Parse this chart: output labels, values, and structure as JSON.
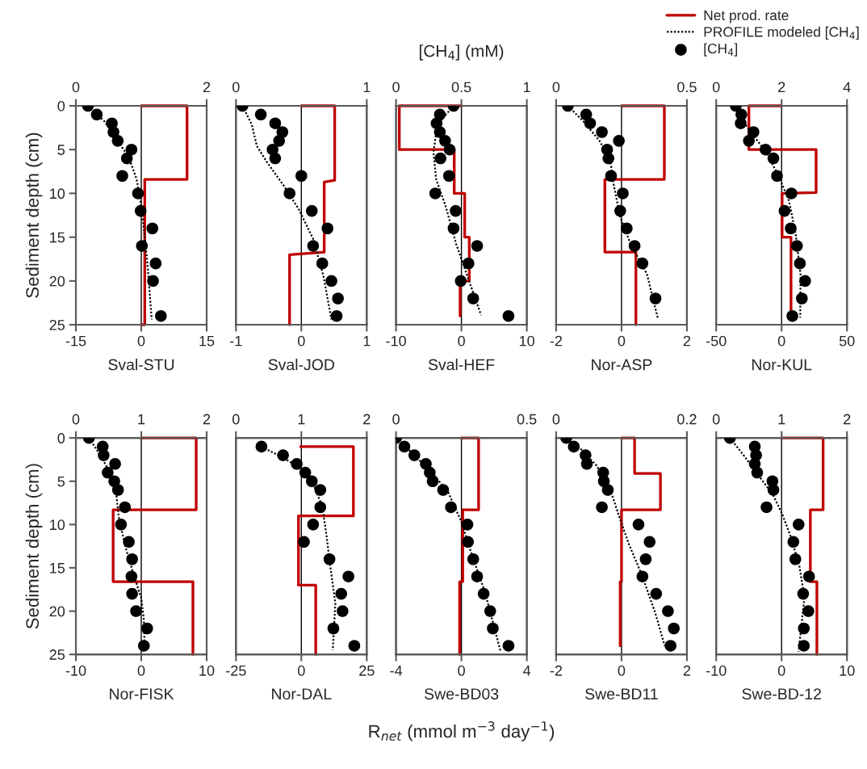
{
  "chart_data": [
    {
      "type": "line",
      "title": "Sval-STU",
      "ylabel": "Sediment depth (cm)",
      "xlim": [
        -15,
        15
      ],
      "xticks": [
        -15,
        0,
        15
      ],
      "x2lim": [
        0,
        2
      ],
      "x2ticks": [
        0,
        2
      ],
      "ylim": [
        25,
        0
      ],
      "yticks": [
        0,
        5,
        10,
        15,
        20,
        25
      ],
      "ref_lines": [
        {
          "axis": "x",
          "value": 0
        }
      ],
      "series": [
        {
          "type": "line",
          "color": "#c00000",
          "line_style": "solid",
          "x": [
            0,
            10.5,
            10.5,
            0.8,
            0.8,
            0
          ],
          "values": [
            0,
            0,
            8.4,
            8.4,
            25,
            25
          ]
        },
        {
          "type": "scatter",
          "axis": "x2",
          "color": "#000000",
          "marker": "circle",
          "x": [
            0.185,
            0.32,
            0.55,
            0.575,
            0.64,
            0.85,
            0.78,
            0.71,
            0.95,
            0.99,
            1.17,
            1.01,
            1.22,
            1.18,
            1.3
          ],
          "values": [
            0,
            1,
            2,
            3,
            4,
            5,
            6,
            8,
            10,
            12,
            14,
            16,
            18,
            20,
            24
          ]
        },
        {
          "type": "line",
          "axis": "x2",
          "color": "#000000",
          "line_style": "dotted",
          "x": [
            0.185,
            0.44,
            0.64,
            0.81,
            0.93,
            0.99,
            1.03,
            1.09,
            1.16
          ],
          "values": [
            0,
            1.8,
            4,
            5.9,
            8.4,
            10.9,
            13.3,
            17.7,
            24.4
          ]
        }
      ]
    },
    {
      "type": "line",
      "title": "Sval-JOD",
      "tick_labels": "x",
      "xlim": [
        -1,
        1
      ],
      "xticks": [
        -1,
        0,
        1
      ],
      "x2lim": [
        0,
        1
      ],
      "x2ticks": [
        0,
        1
      ],
      "ylim": [
        25,
        0
      ],
      "yticks": [
        0,
        5,
        10,
        15,
        20,
        25
      ],
      "ref_lines": [
        {
          "axis": "x",
          "value": 0
        }
      ],
      "series": [
        {
          "type": "line",
          "color": "#c00000",
          "line_style": "solid",
          "x": [
            0,
            0.51,
            0.51,
            0.35,
            0.35,
            -0.18,
            -0.18
          ],
          "values": [
            0,
            0,
            8.5,
            8.7,
            16.7,
            17,
            25
          ]
        },
        {
          "type": "scatter",
          "axis": "x2",
          "color": "#000000",
          "marker": "circle",
          "x": [
            0.05,
            0.19,
            0.3,
            0.355,
            0.33,
            0.28,
            0.3,
            0.5,
            0.41,
            0.58,
            0.7,
            0.59,
            0.66,
            0.73,
            0.78,
            0.77
          ],
          "values": [
            0,
            1,
            2,
            3,
            4,
            5,
            6,
            8,
            10,
            12,
            14,
            16,
            18,
            20,
            22,
            24
          ]
        },
        {
          "type": "line",
          "axis": "x2",
          "color": "#000000",
          "line_style": "dotted",
          "x": [
            0.05,
            0.12,
            0.16,
            0.24,
            0.36,
            0.48,
            0.59,
            0.67,
            0.73
          ],
          "values": [
            0,
            2.1,
            4.6,
            6.5,
            9,
            11.8,
            15.2,
            19.5,
            24.4
          ]
        }
      ]
    },
    {
      "type": "line",
      "title": "Sval-HEF",
      "x2label": "[CH$_{4}$] (mM)",
      "tick_labels": "x",
      "xlim": [
        -10,
        10
      ],
      "xticks": [
        -10,
        0,
        10
      ],
      "x2lim": [
        0,
        1
      ],
      "x2ticks": [
        0,
        0.5,
        1
      ],
      "ylim": [
        25,
        0
      ],
      "yticks": [
        0,
        5,
        10,
        15,
        20,
        25
      ],
      "ref_lines": [
        {
          "axis": "x",
          "value": 0
        }
      ],
      "series": [
        {
          "type": "line",
          "color": "#c00000",
          "line_style": "solid",
          "x": [
            0,
            -9.5,
            -9.5,
            -1.1,
            -1.1,
            0.5,
            0.5,
            1.2,
            1.2,
            -0.2,
            -0.2
          ],
          "values": [
            0,
            0,
            5,
            5,
            10,
            10,
            15,
            15,
            20,
            20,
            24
          ]
        },
        {
          "type": "scatter",
          "axis": "x2",
          "color": "#000000",
          "marker": "circle",
          "x": [
            0.44,
            0.335,
            0.31,
            0.335,
            0.375,
            0.41,
            0.34,
            0.405,
            0.3,
            0.456,
            0.44,
            0.62,
            0.554,
            0.495,
            0.59,
            0.86
          ],
          "values": [
            0,
            1,
            2,
            3,
            4,
            5,
            6,
            8,
            10,
            12,
            14,
            16,
            18,
            20,
            22,
            24
          ]
        },
        {
          "type": "line",
          "axis": "x2",
          "color": "#000000",
          "line_style": "dotted",
          "x": [
            0.44,
            0.317,
            0.286,
            0.307,
            0.38,
            0.46,
            0.54,
            0.65
          ],
          "values": [
            0,
            2.1,
            5.3,
            8.4,
            11.5,
            15.8,
            19.2,
            23.9
          ]
        }
      ]
    },
    {
      "type": "line",
      "title": "Nor-ASP",
      "tick_labels": "x",
      "xlim": [
        -2,
        2
      ],
      "xticks": [
        -2,
        0,
        2
      ],
      "x2lim": [
        0,
        0.5
      ],
      "x2ticks": [
        0,
        0.5
      ],
      "ylim": [
        25,
        0
      ],
      "yticks": [
        0,
        5,
        10,
        15,
        20,
        25
      ],
      "ref_lines": [
        {
          "axis": "x",
          "value": 0
        }
      ],
      "series": [
        {
          "type": "line",
          "color": "#c00000",
          "line_style": "solid",
          "x": [
            0,
            1.31,
            1.31,
            -0.51,
            -0.51,
            0.44,
            0.44
          ],
          "values": [
            0,
            0,
            8.4,
            8.4,
            16.7,
            16.7,
            25
          ]
        },
        {
          "type": "scatter",
          "axis": "x2",
          "color": "#000000",
          "marker": "circle",
          "x": [
            0.045,
            0.115,
            0.13,
            0.175,
            0.24,
            0.195,
            0.2,
            0.21,
            0.255,
            0.245,
            0.27,
            0.3,
            0.33,
            0.38
          ],
          "values": [
            0,
            1,
            2,
            3,
            4,
            5,
            6,
            8,
            10,
            12,
            14,
            16,
            18,
            22
          ]
        },
        {
          "type": "line",
          "axis": "x2",
          "color": "#000000",
          "line_style": "dotted",
          "x": [
            0.045,
            0.105,
            0.166,
            0.207,
            0.22,
            0.245,
            0.285,
            0.347,
            0.39
          ],
          "values": [
            0,
            1.8,
            4,
            6.2,
            9,
            12.7,
            15.8,
            19.2,
            24.4
          ]
        }
      ]
    },
    {
      "type": "line",
      "title": "Nor-KUL",
      "legend": "top",
      "tick_labels": "x",
      "xlim": [
        -50,
        50
      ],
      "xticks": [
        -50,
        0,
        50
      ],
      "x2lim": [
        0,
        4
      ],
      "x2ticks": [
        0,
        2,
        4
      ],
      "ylim": [
        25,
        0
      ],
      "yticks": [
        0,
        5,
        10,
        15,
        20,
        25
      ],
      "ref_lines": [
        {
          "axis": "x",
          "value": 0
        }
      ],
      "series": [
        {
          "type": "line",
          "name": "Net prod. rate",
          "color": "#c00000",
          "line_style": "solid",
          "x": [
            0,
            -25,
            -25,
            26.4,
            26.4,
            0.4,
            0.4,
            7.2,
            7.2
          ],
          "values": [
            0,
            0,
            5,
            5,
            9.9,
            10,
            15,
            15,
            24
          ]
        },
        {
          "type": "line",
          "name": "PROFILE modeled [CH$_{4}$]",
          "axis": "x2",
          "color": "#000000",
          "line_style": "dotted",
          "x": [
            0.6,
            0.83,
            1.14,
            1.53,
            1.92,
            2.23,
            2.43,
            2.58,
            2.57
          ],
          "values": [
            0,
            1.8,
            3.4,
            5.3,
            8.1,
            10.9,
            14.6,
            19.3,
            24.2
          ]
        },
        {
          "type": "scatter",
          "name": "[CH$_{4}$]",
          "axis": "x2",
          "color": "#000000",
          "marker": "circle",
          "x": [
            0.6,
            0.77,
            0.75,
            1.14,
            1.0,
            1.51,
            1.75,
            1.86,
            2.3,
            2.09,
            2.28,
            2.47,
            2.56,
            2.72,
            2.62,
            2.33
          ],
          "values": [
            0,
            1,
            2,
            3,
            4,
            5,
            6,
            8,
            10,
            12,
            14,
            16,
            18,
            20,
            22,
            24
          ]
        }
      ]
    },
    {
      "type": "line",
      "title": "Nor-FISK",
      "ylabel": "Sediment depth (cm)",
      "xlim": [
        -10,
        10
      ],
      "xticks": [
        -10,
        0,
        10
      ],
      "x2lim": [
        0,
        2
      ],
      "x2ticks": [
        0,
        1,
        2
      ],
      "ylim": [
        25,
        0
      ],
      "yticks": [
        0,
        5,
        10,
        15,
        20,
        25
      ],
      "ref_lines": [
        {
          "axis": "x",
          "value": 0
        }
      ],
      "series": [
        {
          "type": "line",
          "color": "#c00000",
          "line_style": "solid",
          "x": [
            0,
            8.4,
            8.4,
            -4.3,
            -4.3,
            7.9,
            7.9
          ],
          "values": [
            0,
            0,
            8.3,
            8.3,
            16.6,
            16.6,
            25
          ]
        },
        {
          "type": "scatter",
          "axis": "x2",
          "color": "#000000",
          "marker": "circle",
          "x": [
            0.2,
            0.41,
            0.425,
            0.6,
            0.486,
            0.587,
            0.644,
            0.75,
            0.69,
            0.81,
            0.86,
            0.85,
            0.86,
            0.92,
            1.09,
            1.04
          ],
          "values": [
            0,
            1,
            2,
            3,
            4,
            5,
            6,
            8,
            10,
            12,
            14,
            16,
            18,
            20,
            22,
            24
          ]
        },
        {
          "type": "line",
          "axis": "x2",
          "color": "#000000",
          "line_style": "dotted",
          "x": [
            0.2,
            0.35,
            0.51,
            0.615,
            0.655,
            0.755,
            0.88,
            1.0,
            1.04,
            1.05
          ],
          "values": [
            0,
            1.7,
            3.8,
            6.3,
            9.1,
            12.5,
            15.7,
            18.5,
            21,
            24
          ]
        }
      ]
    },
    {
      "type": "line",
      "title": "Nor-DAL",
      "tick_labels": "x",
      "xlim": [
        -25,
        25
      ],
      "xticks": [
        -25,
        0,
        25
      ],
      "x2lim": [
        0,
        2
      ],
      "x2ticks": [
        0,
        1,
        2
      ],
      "ylim": [
        25,
        0
      ],
      "yticks": [
        0,
        5,
        10,
        15,
        20,
        25
      ],
      "ref_lines": [
        {
          "axis": "x",
          "value": 0
        }
      ],
      "series": [
        {
          "type": "line",
          "color": "#c00000",
          "line_style": "solid",
          "x": [
            -0.3,
            19.9,
            19.9,
            -1.1,
            -1.1,
            5.5,
            5.5
          ],
          "values": [
            1,
            1,
            9,
            9,
            17,
            17,
            25
          ]
        },
        {
          "type": "scatter",
          "axis": "x2",
          "color": "#000000",
          "marker": "circle",
          "x": [
            0.39,
            0.72,
            0.93,
            1.06,
            1.16,
            1.29,
            1.29,
            1.18,
            1.04,
            1.43,
            1.72,
            1.61,
            1.63,
            1.49,
            1.81
          ],
          "values": [
            1,
            2,
            3,
            4,
            5,
            6,
            8,
            10,
            12,
            14,
            16,
            18,
            20,
            22,
            24
          ]
        },
        {
          "type": "line",
          "axis": "x2",
          "color": "#000000",
          "line_style": "dotted",
          "x": [
            0.39,
            0.65,
            0.93,
            1.17,
            1.32,
            1.38,
            1.44,
            1.52,
            1.48
          ],
          "values": [
            1,
            2,
            3.2,
            5.1,
            7.9,
            11,
            14.7,
            19.1,
            24.5
          ]
        }
      ]
    },
    {
      "type": "line",
      "title": "Swe-BD03",
      "xlabel": "R$_{net}$ (mmol m$^{−3}$ day$^{−1}$)",
      "tick_labels": "x",
      "xlim": [
        -4,
        4
      ],
      "xticks": [
        -4,
        0,
        4
      ],
      "x2lim": [
        0,
        0.5
      ],
      "x2ticks": [
        0,
        0.5
      ],
      "ylim": [
        25,
        0
      ],
      "yticks": [
        0,
        5,
        10,
        15,
        20,
        25
      ],
      "ref_lines": [
        {
          "axis": "x",
          "value": 0
        }
      ],
      "series": [
        {
          "type": "line",
          "color": "#c00000",
          "line_style": "solid",
          "x": [
            0,
            1.05,
            1.05,
            0.08,
            0.08,
            -0.11,
            -0.11
          ],
          "values": [
            0,
            0,
            8.3,
            8.3,
            16.6,
            16.6,
            25
          ]
        },
        {
          "type": "scatter",
          "axis": "x2",
          "color": "#000000",
          "marker": "circle",
          "x": [
            0,
            0.032,
            0.07,
            0.114,
            0.129,
            0.14,
            0.18,
            0.21,
            0.273,
            0.275,
            0.295,
            0.31,
            0.335,
            0.36,
            0.37,
            0.43
          ],
          "values": [
            0,
            1,
            2,
            3,
            4,
            5,
            6,
            8,
            10,
            12,
            14,
            16,
            18,
            20,
            22,
            24
          ]
        },
        {
          "type": "line",
          "axis": "x2",
          "color": "#000000",
          "line_style": "dotted",
          "x": [
            0,
            0.06,
            0.14,
            0.2,
            0.25,
            0.29,
            0.34,
            0.4
          ],
          "values": [
            0,
            1.7,
            4.1,
            6.3,
            9.7,
            13.5,
            17.8,
            24.7
          ]
        }
      ]
    },
    {
      "type": "line",
      "title": "Swe-BD11",
      "tick_labels": "x",
      "xlim": [
        -2,
        2
      ],
      "xticks": [
        -2,
        0,
        2
      ],
      "x2lim": [
        0,
        0.2
      ],
      "x2ticks": [
        0,
        0.2
      ],
      "ylim": [
        25,
        0
      ],
      "yticks": [
        0,
        5,
        10,
        15,
        20,
        25
      ],
      "ref_lines": [
        {
          "axis": "x",
          "value": 0
        }
      ],
      "series": [
        {
          "type": "line",
          "color": "#c00000",
          "line_style": "solid",
          "x": [
            0,
            0.4,
            0.4,
            1.19,
            1.19,
            0,
            0,
            -0.04,
            -0.04
          ],
          "values": [
            0,
            0,
            4.1,
            4.1,
            8.3,
            8.3,
            16.6,
            16.6,
            24
          ]
        },
        {
          "type": "scatter",
          "axis": "x2",
          "color": "#000000",
          "marker": "circle",
          "x": [
            0.0155,
            0.027,
            0.045,
            0.047,
            0.072,
            0.073,
            0.079,
            0.07,
            0.126,
            0.143,
            0.137,
            0.132,
            0.153,
            0.171,
            0.18,
            0.175
          ],
          "values": [
            0,
            1,
            2,
            3,
            4,
            5,
            6,
            8,
            10,
            12,
            14,
            16,
            18,
            20,
            22,
            24
          ]
        },
        {
          "type": "line",
          "axis": "x2",
          "color": "#000000",
          "line_style": "dotted",
          "x": [
            0.0155,
            0.038,
            0.062,
            0.083,
            0.097,
            0.111,
            0.132,
            0.152,
            0.166
          ],
          "values": [
            0,
            1.3,
            3.2,
            6,
            9.2,
            12.2,
            16,
            20.3,
            24
          ]
        }
      ]
    },
    {
      "type": "line",
      "title": "Swe-BD-12",
      "tick_labels": "x",
      "xlim": [
        -10,
        10
      ],
      "xticks": [
        -10,
        0,
        10
      ],
      "x2lim": [
        0,
        2
      ],
      "x2ticks": [
        0,
        1,
        2
      ],
      "ylim": [
        25,
        0
      ],
      "yticks": [
        0,
        5,
        10,
        15,
        20,
        25
      ],
      "ref_lines": [
        {
          "axis": "x",
          "value": 0
        }
      ],
      "series": [
        {
          "type": "line",
          "color": "#c00000",
          "line_style": "solid",
          "x": [
            0,
            6.35,
            6.35,
            4.4,
            4.4,
            5.4,
            5.4
          ],
          "values": [
            0,
            0,
            8.3,
            8.3,
            16.6,
            16.6,
            25
          ]
        },
        {
          "type": "scatter",
          "axis": "x2",
          "color": "#000000",
          "marker": "circle",
          "x": [
            0.21,
            0.59,
            0.61,
            0.59,
            0.627,
            0.86,
            0.875,
            0.77,
            1.26,
            1.18,
            1.21,
            1.42,
            1.33,
            1.41,
            1.34,
            1.34
          ],
          "values": [
            0,
            1,
            2,
            3,
            4,
            5,
            6,
            8,
            10,
            12,
            14,
            16,
            18,
            20,
            22,
            24
          ]
        },
        {
          "type": "line",
          "axis": "x2",
          "color": "#000000",
          "line_style": "dotted",
          "x": [
            0.21,
            0.42,
            0.665,
            0.87,
            1.01,
            1.15,
            1.27,
            1.35,
            1.26
          ],
          "values": [
            0,
            2,
            4.5,
            6.6,
            8.8,
            11.6,
            14.7,
            18.4,
            24.7
          ]
        }
      ]
    }
  ]
}
